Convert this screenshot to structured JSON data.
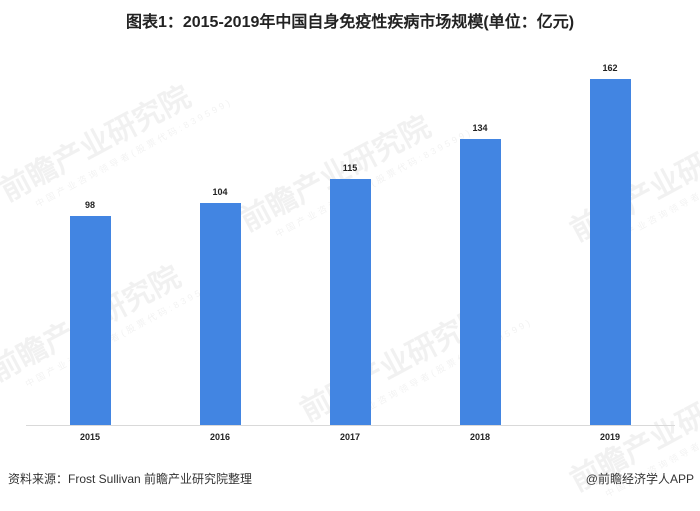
{
  "title": "图表1：2015-2019年中国自身免疫性疾病市场规模(单位：亿元)",
  "watermark": {
    "text": "前瞻产业研究院",
    "subtext": "中国产业咨询领导者(股票代码:839599)"
  },
  "chart_data": {
    "type": "bar",
    "title": "图表1：2015-2019年中国自身免疫性疾病市场规模(单位：亿元)",
    "categories": [
      "2015",
      "2016",
      "2017",
      "2018",
      "2019"
    ],
    "values": [
      98,
      104,
      115,
      134,
      162
    ],
    "xlabel": "",
    "ylabel": "亿元",
    "ylim": [
      0,
      175
    ],
    "grid": false,
    "legend": "none",
    "bar_color": "#4285E2",
    "data_labels": true
  },
  "footer": {
    "source": "资料来源：Frost Sullivan 前瞻产业研究院整理",
    "credit": "@前瞻经济学人APP"
  }
}
